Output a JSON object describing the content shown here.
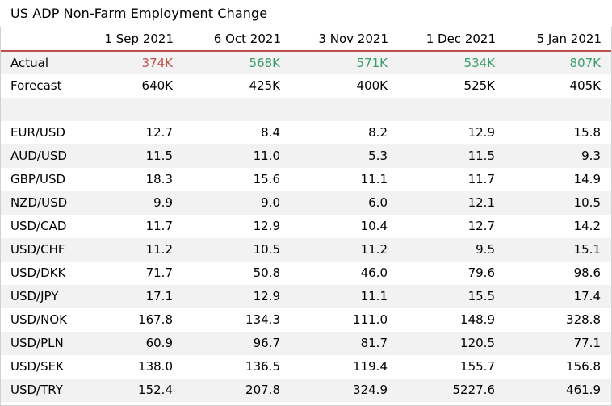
{
  "title": "US ADP Non-Farm Employment Change",
  "header": {
    "label": "",
    "dates": [
      "1 Sep 2021",
      "6 Oct 2021",
      "3 Nov 2021",
      "1 Dec 2021",
      "5 Jan 2021"
    ]
  },
  "colors": {
    "accent_line": "#c0504d",
    "negative": "#c0504d",
    "positive": "#3a9c6a",
    "stripe": "#f2f2f2"
  },
  "actual": {
    "label": "Actual",
    "values": [
      "374K",
      "568K",
      "571K",
      "534K",
      "807K"
    ],
    "tones": [
      "negative",
      "positive",
      "positive",
      "positive",
      "positive"
    ]
  },
  "forecast": {
    "label": "Forecast",
    "values": [
      "640K",
      "425K",
      "400K",
      "525K",
      "405K"
    ]
  },
  "pairs": [
    {
      "label": "EUR/USD",
      "values": [
        "12.7",
        "8.4",
        "8.2",
        "12.9",
        "15.8"
      ]
    },
    {
      "label": "AUD/USD",
      "values": [
        "11.5",
        "11.0",
        "5.3",
        "11.5",
        "9.3"
      ]
    },
    {
      "label": "GBP/USD",
      "values": [
        "18.3",
        "15.6",
        "11.1",
        "11.7",
        "14.9"
      ]
    },
    {
      "label": "NZD/USD",
      "values": [
        "9.9",
        "9.0",
        "6.0",
        "12.1",
        "10.5"
      ]
    },
    {
      "label": "USD/CAD",
      "values": [
        "11.7",
        "12.9",
        "10.4",
        "12.7",
        "14.2"
      ]
    },
    {
      "label": "USD/CHF",
      "values": [
        "11.2",
        "10.5",
        "11.2",
        "9.5",
        "15.1"
      ]
    },
    {
      "label": "USD/DKK",
      "values": [
        "71.7",
        "50.8",
        "46.0",
        "79.6",
        "98.6"
      ]
    },
    {
      "label": "USD/JPY",
      "values": [
        "17.1",
        "12.9",
        "11.1",
        "15.5",
        "17.4"
      ]
    },
    {
      "label": "USD/NOK",
      "values": [
        "167.8",
        "134.3",
        "111.0",
        "148.9",
        "328.8"
      ]
    },
    {
      "label": "USD/PLN",
      "values": [
        "60.9",
        "96.7",
        "81.7",
        "120.5",
        "77.1"
      ]
    },
    {
      "label": "USD/SEK",
      "values": [
        "138.0",
        "136.5",
        "119.4",
        "155.7",
        "156.8"
      ]
    },
    {
      "label": "USD/TRY",
      "values": [
        "152.4",
        "207.8",
        "324.9",
        "5227.6",
        "461.9"
      ]
    }
  ]
}
